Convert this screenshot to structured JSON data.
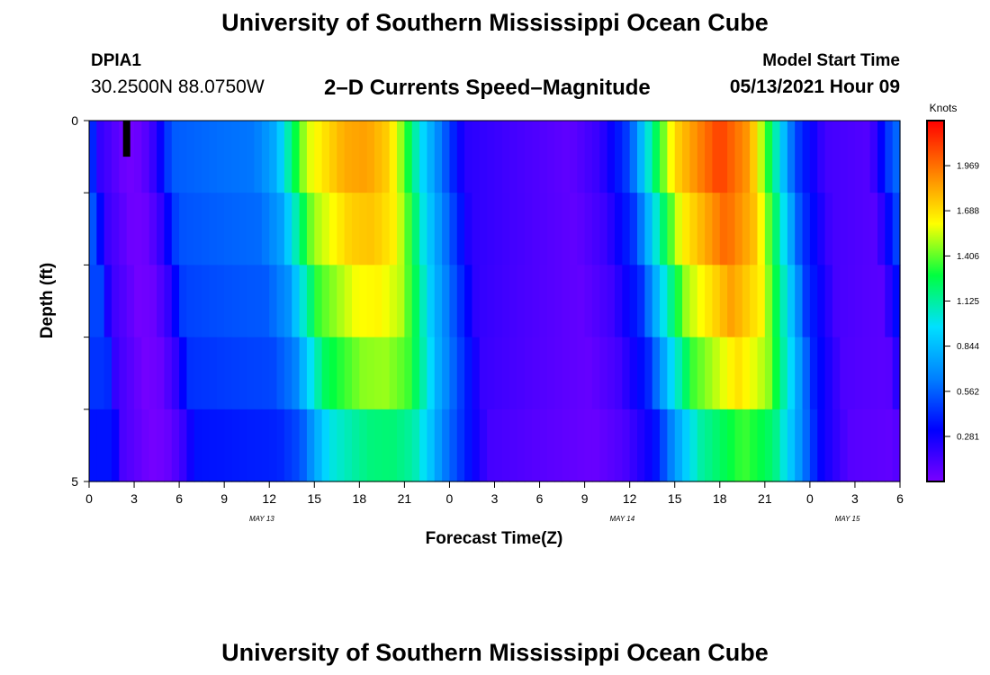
{
  "header": {
    "title": "University of Southern Mississippi Ocean Cube",
    "station": "DPIA1",
    "coordinates": "30.2500N  88.0750W",
    "chart_title": "2–D Currents Speed–Magnitude",
    "model_start_label": "Model Start Time",
    "model_start_value": "05/13/2021 Hour 09"
  },
  "footer": {
    "title": "University of Southern Mississippi Ocean Cube"
  },
  "colors": {
    "ramp": [
      "#7a00ff",
      "#0000ff",
      "#0080ff",
      "#00e0ff",
      "#00ff40",
      "#ffff00",
      "#ff8000",
      "#ff0000"
    ]
  },
  "chart_data": {
    "type": "heatmap",
    "title": "2–D Currents Speed–Magnitude",
    "xlabel": "Forecast Time(Z)",
    "ylabel": "Depth (ft)",
    "x_hours_since_start": [
      0,
      54
    ],
    "x_tick_labels": [
      "0",
      "3",
      "6",
      "9",
      "12",
      "15",
      "18",
      "21",
      "0",
      "3",
      "6",
      "9",
      "12",
      "15",
      "18",
      "21",
      "0",
      "3",
      "6"
    ],
    "date_labels": [
      {
        "text": "MAY 13",
        "hour": 11.5
      },
      {
        "text": "MAY 14",
        "hour": 35.5
      },
      {
        "text": "MAY 15",
        "hour": 50.5
      }
    ],
    "y_range": [
      0,
      5
    ],
    "y_tick_labels": [
      "0",
      "5"
    ],
    "y_minor_ticks": [
      1,
      2,
      3,
      4
    ],
    "depth_levels": 5,
    "colorbar": {
      "unit": "Knots",
      "min": 0,
      "max": 2.25,
      "ticks": [
        "0.281",
        "0.562",
        "0.844",
        "1.125",
        "1.406",
        "1.688",
        "1.969"
      ]
    },
    "marker": {
      "hour": 2.5,
      "depth_from": 0,
      "depth_to": 0.5
    },
    "time_profile": [
      {
        "h": 0,
        "v": 0.56
      },
      {
        "h": 0.6,
        "v": 0.2
      },
      {
        "h": 1.5,
        "v": 0.12
      },
      {
        "h": 2.5,
        "v": 0.02
      },
      {
        "h": 3.5,
        "v": 0.05
      },
      {
        "h": 4.5,
        "v": 0.22
      },
      {
        "h": 5.5,
        "v": 0.55
      },
      {
        "h": 9,
        "v": 0.6
      },
      {
        "h": 11,
        "v": 0.62
      },
      {
        "h": 12.5,
        "v": 0.8
      },
      {
        "h": 13.5,
        "v": 1.2
      },
      {
        "h": 14.5,
        "v": 1.55
      },
      {
        "h": 17,
        "v": 1.82
      },
      {
        "h": 18.5,
        "v": 1.85
      },
      {
        "h": 20,
        "v": 1.72
      },
      {
        "h": 21,
        "v": 1.4
      },
      {
        "h": 22,
        "v": 1.0
      },
      {
        "h": 23.5,
        "v": 0.6
      },
      {
        "h": 25,
        "v": 0.22
      },
      {
        "h": 28,
        "v": 0.15
      },
      {
        "h": 32,
        "v": 0.07
      },
      {
        "h": 34,
        "v": 0.18
      },
      {
        "h": 36,
        "v": 0.5
      },
      {
        "h": 37.5,
        "v": 1.15
      },
      {
        "h": 39,
        "v": 1.7
      },
      {
        "h": 42,
        "v": 2.1
      },
      {
        "h": 44,
        "v": 1.85
      },
      {
        "h": 45.5,
        "v": 1.2
      },
      {
        "h": 47,
        "v": 0.5
      },
      {
        "h": 49,
        "v": 0.15
      },
      {
        "h": 52,
        "v": 0.1
      },
      {
        "h": 53.5,
        "v": 0.55
      },
      {
        "h": 54,
        "v": 0.6
      }
    ],
    "depth_delay_hours": [
      0,
      0.4,
      0.8,
      1.2,
      1.6
    ],
    "depth_scale": [
      1.0,
      0.95,
      0.88,
      0.8,
      0.65
    ]
  }
}
